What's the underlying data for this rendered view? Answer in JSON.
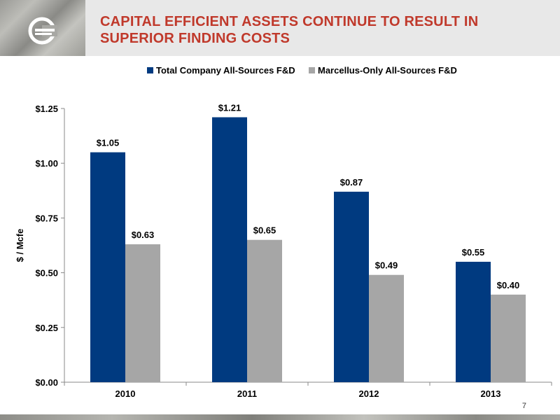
{
  "header": {
    "title_line1": "CAPITAL EFFICIENT ASSETS CONTINUE TO RESULT IN",
    "title_line2": "SUPERIOR FINDING COSTS",
    "logo_icon": "company-logo-icon"
  },
  "page_number": "7",
  "colors": {
    "title": "#c0392b",
    "series_total": "#003a80",
    "series_marcellus": "#a6a6a6"
  },
  "chart_data": {
    "type": "bar",
    "categories": [
      "2010",
      "2011",
      "2012",
      "2013"
    ],
    "series": [
      {
        "name": "Total Company All-Sources F&D",
        "values": [
          1.05,
          1.21,
          0.87,
          0.55
        ],
        "labels": [
          "$1.05",
          "$1.21",
          "$0.87",
          "$0.55"
        ]
      },
      {
        "name": "Marcellus-Only All-Sources F&D",
        "values": [
          0.63,
          0.65,
          0.49,
          0.4
        ],
        "labels": [
          "$0.63",
          "$0.65",
          "$0.49",
          "$0.40"
        ]
      }
    ],
    "ylabel": "$ / Mcfe",
    "ylim": [
      0,
      1.25
    ],
    "yticks": [
      0,
      0.25,
      0.5,
      0.75,
      1.0,
      1.25
    ],
    "ytick_labels": [
      "$0.00",
      "$0.25",
      "$0.50",
      "$0.75",
      "$1.00",
      "$1.25"
    ],
    "legend_position": "top",
    "grid": false
  }
}
